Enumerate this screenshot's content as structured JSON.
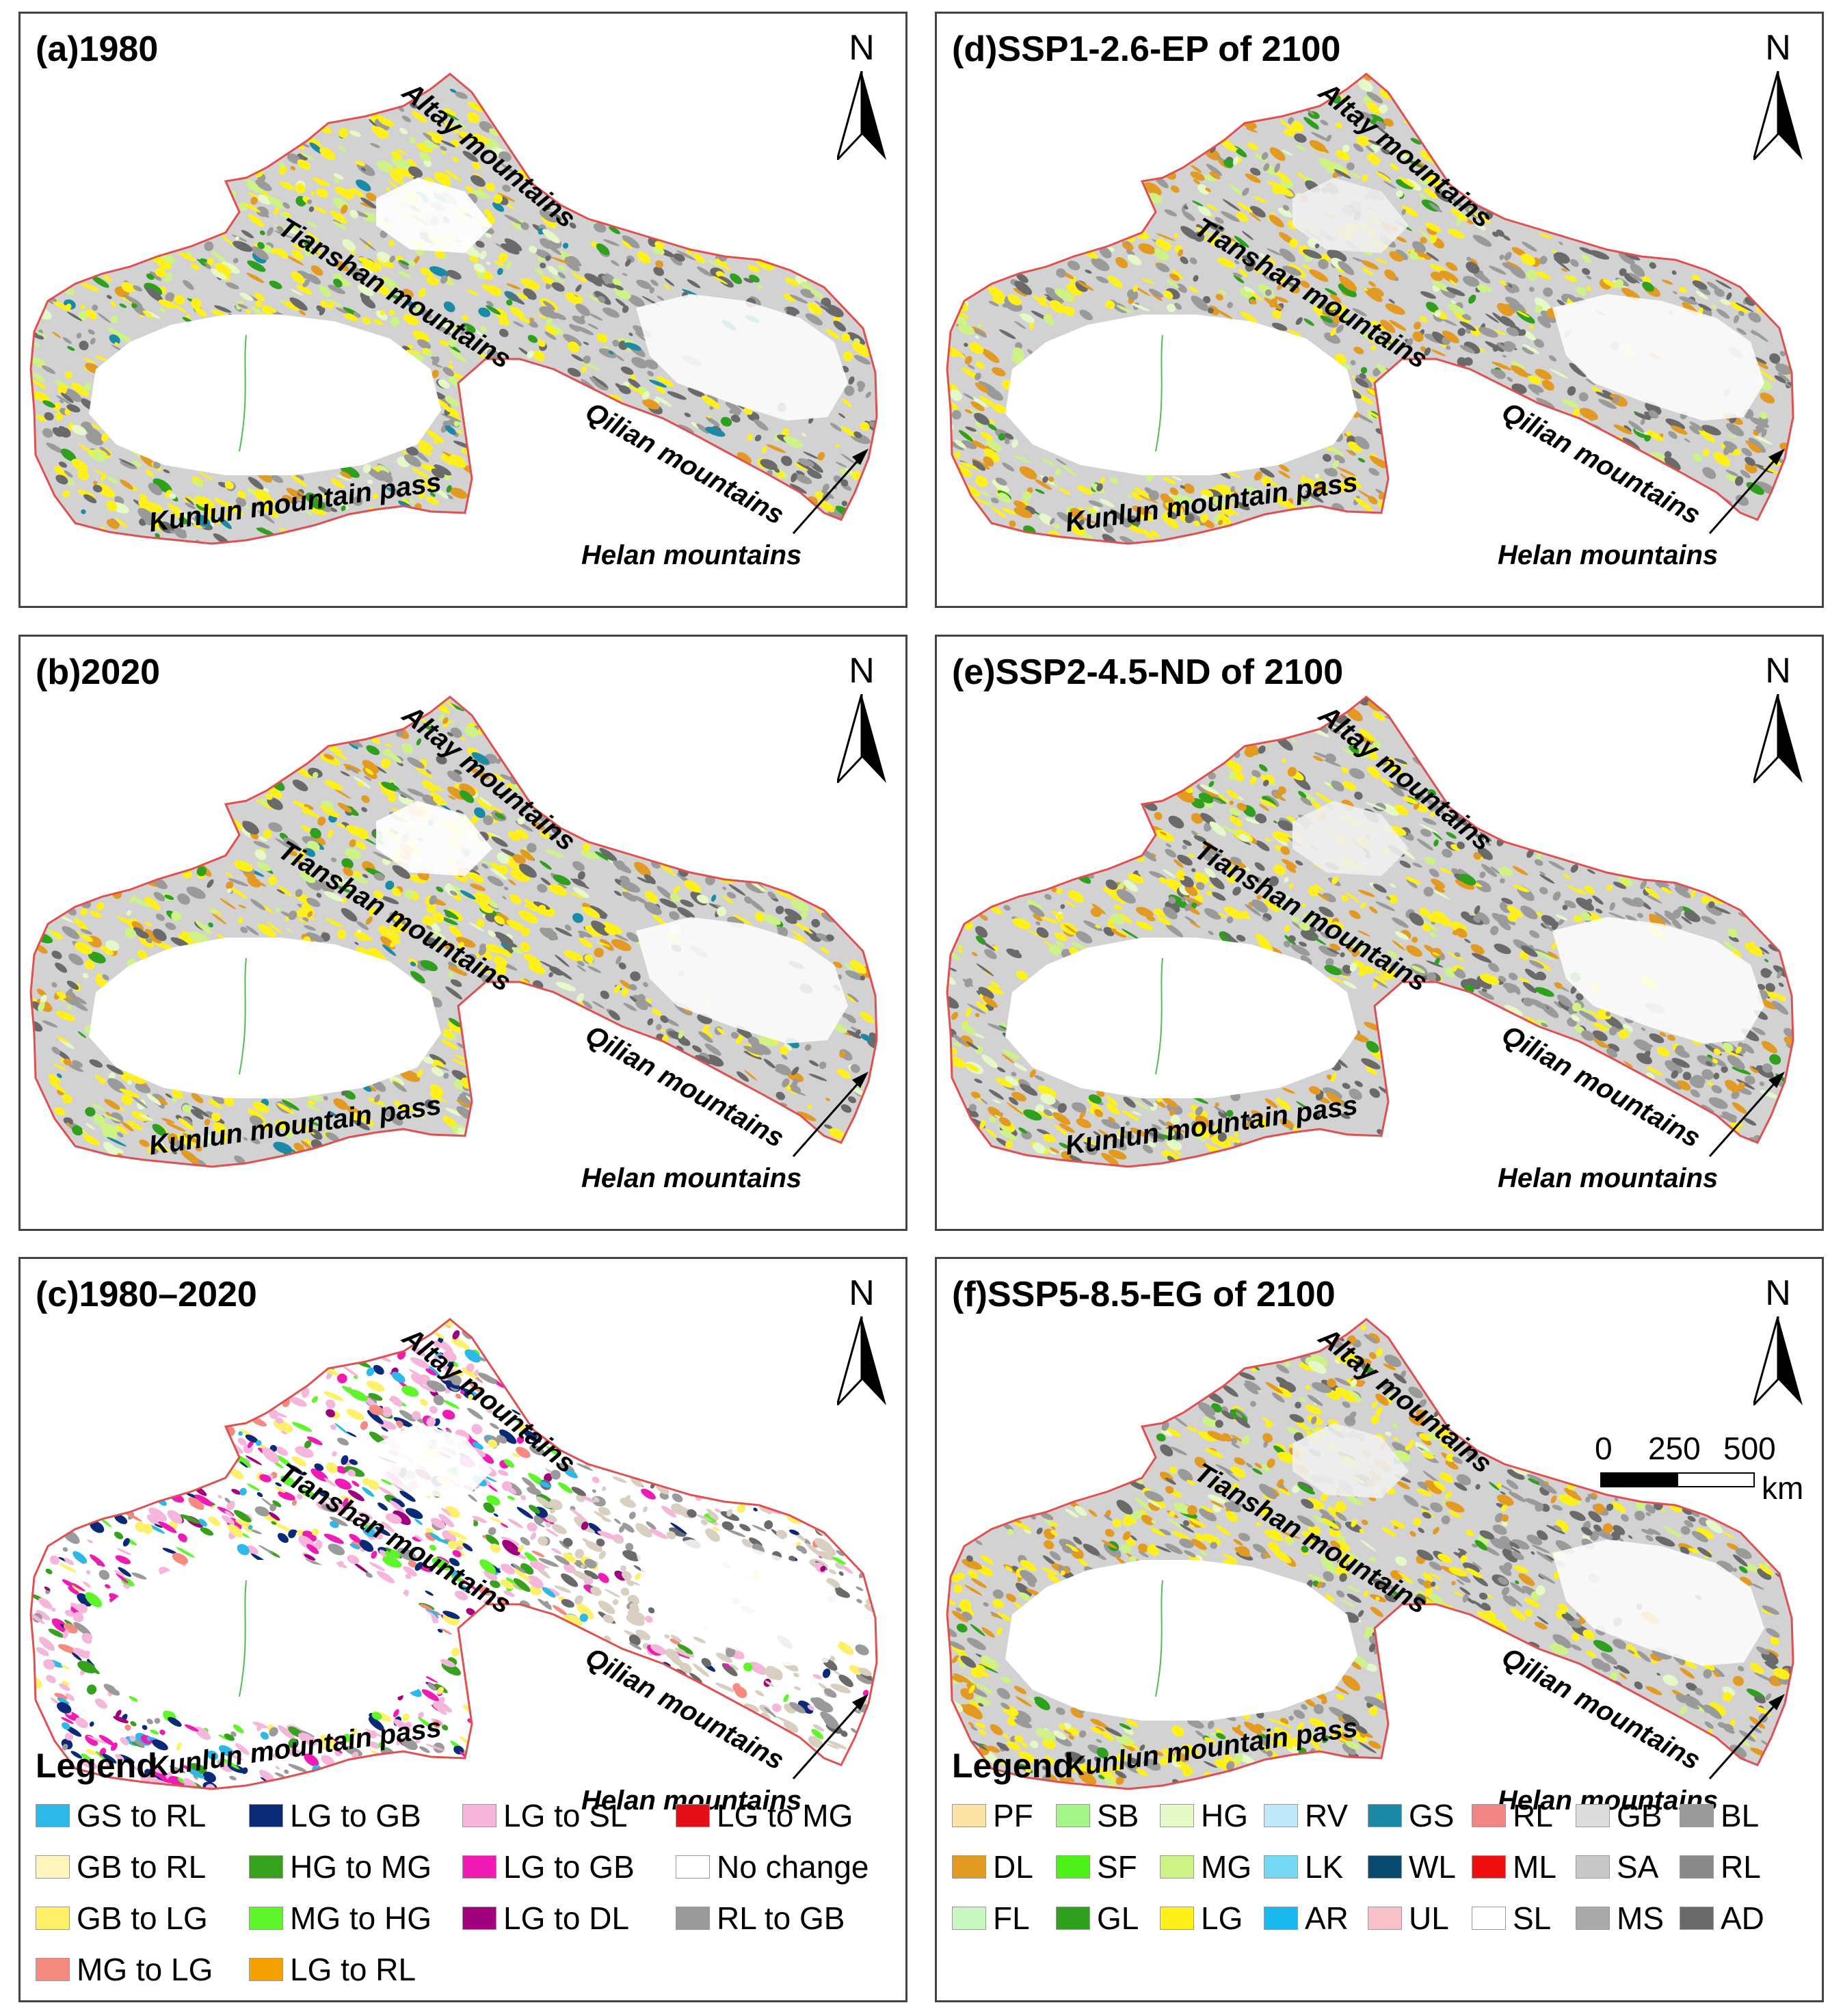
{
  "panels": [
    {
      "id": "a",
      "title": "(a)1980",
      "variant": "landcover-1980"
    },
    {
      "id": "d",
      "title": "(d)SSP1-2.6-EP of 2100",
      "variant": "landcover-ep"
    },
    {
      "id": "b",
      "title": "(b)2020",
      "variant": "landcover-2020"
    },
    {
      "id": "e",
      "title": "(e)SSP2-4.5-ND of 2100",
      "variant": "landcover-nd"
    },
    {
      "id": "c",
      "title": "(c)1980–2020",
      "variant": "change"
    },
    {
      "id": "f",
      "title": "(f)SSP5-8.5-EG of 2100",
      "variant": "landcover-eg"
    }
  ],
  "north_label": "N",
  "place_labels": {
    "altay": "Altay mountains",
    "tianshan": "Tianshan mountains",
    "qilian": "Qilian mountains",
    "kunlun": "Kunlun mountain pass",
    "helan": "Helan mountains"
  },
  "scale_bar": {
    "ticks": [
      "0",
      "250",
      "500"
    ],
    "unit": "km"
  },
  "legend_change": {
    "title": "Legend",
    "items": [
      {
        "label": "GS to RL",
        "color": "#2db8ea"
      },
      {
        "label": "LG to GB",
        "color": "#0a2a78"
      },
      {
        "label": "LG to SL",
        "color": "#f6b6dc"
      },
      {
        "label": "LG to MG",
        "color": "#e3101a"
      },
      {
        "label": "GB to RL",
        "color": "#fff6bd"
      },
      {
        "label": "HG to MG",
        "color": "#36a11c"
      },
      {
        "label": "LG to GB",
        "color": "#f01bb4"
      },
      {
        "label": "No change",
        "color": "#ffffff"
      },
      {
        "label": "GB to LG",
        "color": "#fff06a"
      },
      {
        "label": "MG to HG",
        "color": "#5ef52b"
      },
      {
        "label": "LG to DL",
        "color": "#a1007d"
      },
      {
        "label": "RL to GB",
        "color": "#9a9a9a"
      },
      {
        "label": "MG to LG",
        "color": "#f58a80"
      },
      {
        "label": "LG to RL",
        "color": "#f5a200"
      }
    ]
  },
  "legend_landcover": {
    "title": "Legend",
    "items": [
      {
        "label": "PF",
        "color": "#fde4a6"
      },
      {
        "label": "SB",
        "color": "#a6f58a"
      },
      {
        "label": "HG",
        "color": "#e4f8c8"
      },
      {
        "label": "RV",
        "color": "#bfe8f8"
      },
      {
        "label": "GS",
        "color": "#1a8aa6"
      },
      {
        "label": "RL",
        "color": "#f28686"
      },
      {
        "label": "GB",
        "color": "#dcdcdc"
      },
      {
        "label": "BL",
        "color": "#9a9a9a"
      },
      {
        "label": "DL",
        "color": "#e39a22"
      },
      {
        "label": "SF",
        "color": "#4ef01a"
      },
      {
        "label": "MG",
        "color": "#cdf286"
      },
      {
        "label": "LK",
        "color": "#74d8f2"
      },
      {
        "label": "WL",
        "color": "#0a4a6e"
      },
      {
        "label": "ML",
        "color": "#ee1010"
      },
      {
        "label": "SA",
        "color": "#c8c8c8"
      },
      {
        "label": "RL",
        "color": "#8a8a8a"
      },
      {
        "label": "FL",
        "color": "#c8f8c0"
      },
      {
        "label": "GL",
        "color": "#2ea01e"
      },
      {
        "label": "LG",
        "color": "#fff01a"
      },
      {
        "label": "AR",
        "color": "#1ab8ee"
      },
      {
        "label": "UL",
        "color": "#f8c0c8"
      },
      {
        "label": "SL",
        "color": "#ffffff"
      },
      {
        "label": "MS",
        "color": "#aaaaaa"
      },
      {
        "label": "AD",
        "color": "#6a6a6a"
      }
    ]
  }
}
